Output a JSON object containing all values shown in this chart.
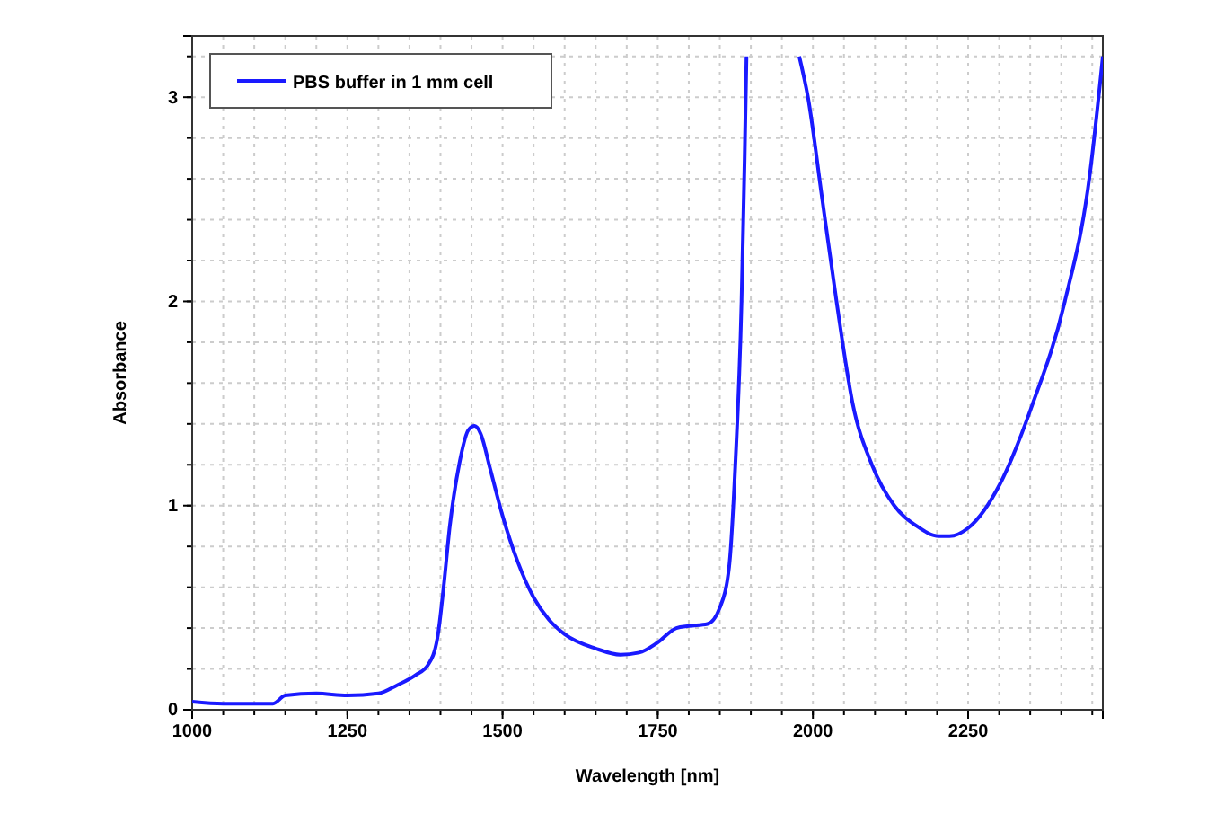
{
  "chart_data": {
    "type": "line",
    "xlabel": "Wavelength [nm]",
    "ylabel": "Absorbance",
    "xlim": [
      1000,
      2467
    ],
    "ylim": [
      0,
      3.3
    ],
    "xticks": [
      1000,
      1250,
      1500,
      1750,
      2000,
      2250
    ],
    "yticks": [
      0,
      1,
      2,
      3
    ],
    "grid": true,
    "legend": "top left",
    "marker": "none",
    "line_style": "solid",
    "series": [
      {
        "name": "PBS buffer in 1 mm cell",
        "color": "#1a1aff",
        "x": [
          1000,
          1050,
          1100,
          1130,
          1150,
          1200,
          1250,
          1300,
          1330,
          1360,
          1380,
          1395,
          1405,
          1415,
          1430,
          1445,
          1455,
          1465,
          1480,
          1500,
          1525,
          1550,
          1575,
          1600,
          1650,
          1690,
          1720,
          1750,
          1780,
          1800,
          1830,
          1850,
          1865,
          1875,
          1885,
          1890,
          1893,
          1935,
          1978,
          1992,
          2015,
          2038,
          2064,
          2095,
          2131,
          2167,
          2203,
          2220,
          2250,
          2302,
          2353,
          2405,
          2446,
          2467
        ],
        "values": [
          0.04,
          0.03,
          0.03,
          0.03,
          0.07,
          0.08,
          0.07,
          0.08,
          0.12,
          0.17,
          0.22,
          0.35,
          0.6,
          0.9,
          1.2,
          1.37,
          1.39,
          1.35,
          1.18,
          0.95,
          0.72,
          0.55,
          0.44,
          0.37,
          0.3,
          0.27,
          0.28,
          0.33,
          0.4,
          0.41,
          0.42,
          0.5,
          0.7,
          1.2,
          2.0,
          2.7,
          3.2,
          null,
          3.2,
          3.0,
          2.5,
          2.0,
          1.5,
          1.2,
          1.0,
          0.9,
          0.85,
          0.85,
          0.89,
          1.11,
          1.49,
          1.99,
          2.62,
          3.2
        ]
      }
    ]
  }
}
